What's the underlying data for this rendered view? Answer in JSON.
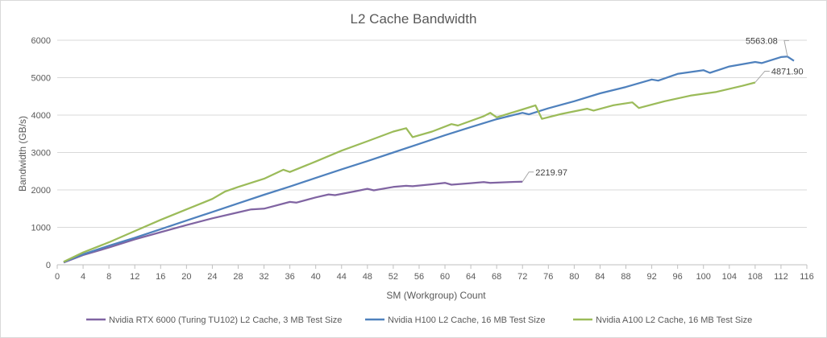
{
  "chart_data": {
    "type": "line",
    "title": "L2 Cache Bandwidth",
    "xlabel": "SM (Workgroup) Count",
    "ylabel": "Bandwidth (GB/s)",
    "xlim": [
      0,
      116
    ],
    "ylim": [
      0,
      6000
    ],
    "x_ticks": [
      0,
      4,
      8,
      12,
      16,
      20,
      24,
      28,
      32,
      36,
      40,
      44,
      48,
      52,
      56,
      60,
      64,
      68,
      72,
      76,
      80,
      84,
      88,
      92,
      96,
      100,
      104,
      108,
      112,
      116
    ],
    "y_ticks": [
      0,
      1000,
      2000,
      3000,
      4000,
      5000,
      6000
    ],
    "grid": "horizontal",
    "legend_position": "bottom",
    "series": [
      {
        "name": "Nvidia RTX 6000 (Turing TU102) L2 Cache, 3 MB Test Size",
        "color": "#8064a2",
        "end_label": "2219.97",
        "points": [
          [
            1,
            60
          ],
          [
            4,
            260
          ],
          [
            8,
            460
          ],
          [
            12,
            680
          ],
          [
            16,
            870
          ],
          [
            20,
            1060
          ],
          [
            24,
            1240
          ],
          [
            28,
            1400
          ],
          [
            30,
            1480
          ],
          [
            32,
            1500
          ],
          [
            36,
            1680
          ],
          [
            37,
            1660
          ],
          [
            40,
            1800
          ],
          [
            42,
            1880
          ],
          [
            43,
            1860
          ],
          [
            46,
            1960
          ],
          [
            48,
            2030
          ],
          [
            49,
            1990
          ],
          [
            52,
            2080
          ],
          [
            54,
            2110
          ],
          [
            55,
            2100
          ],
          [
            58,
            2150
          ],
          [
            60,
            2190
          ],
          [
            61,
            2140
          ],
          [
            64,
            2180
          ],
          [
            66,
            2210
          ],
          [
            67,
            2190
          ],
          [
            70,
            2210
          ],
          [
            72,
            2219.97
          ]
        ]
      },
      {
        "name": "Nvidia H100 L2 Cache, 16 MB Test Size",
        "color": "#4f81bd",
        "end_label": "5563.08",
        "points": [
          [
            1,
            70
          ],
          [
            4,
            280
          ],
          [
            8,
            510
          ],
          [
            12,
            720
          ],
          [
            16,
            950
          ],
          [
            20,
            1180
          ],
          [
            24,
            1410
          ],
          [
            28,
            1640
          ],
          [
            32,
            1870
          ],
          [
            36,
            2090
          ],
          [
            40,
            2320
          ],
          [
            44,
            2550
          ],
          [
            48,
            2770
          ],
          [
            52,
            3000
          ],
          [
            56,
            3230
          ],
          [
            60,
            3460
          ],
          [
            64,
            3680
          ],
          [
            68,
            3890
          ],
          [
            72,
            4060
          ],
          [
            73,
            4020
          ],
          [
            76,
            4180
          ],
          [
            80,
            4370
          ],
          [
            84,
            4580
          ],
          [
            88,
            4750
          ],
          [
            92,
            4950
          ],
          [
            93,
            4920
          ],
          [
            96,
            5100
          ],
          [
            100,
            5200
          ],
          [
            101,
            5130
          ],
          [
            104,
            5300
          ],
          [
            108,
            5420
          ],
          [
            109,
            5390
          ],
          [
            112,
            5550
          ],
          [
            113,
            5563.08
          ],
          [
            114,
            5450
          ]
        ]
      },
      {
        "name": "Nvidia A100 L2 Cache, 16 MB Test Size",
        "color": "#9bbb59",
        "end_label": "4871.90",
        "points": [
          [
            1,
            80
          ],
          [
            4,
            330
          ],
          [
            8,
            600
          ],
          [
            12,
            900
          ],
          [
            16,
            1200
          ],
          [
            20,
            1480
          ],
          [
            24,
            1760
          ],
          [
            26,
            1960
          ],
          [
            28,
            2080
          ],
          [
            32,
            2300
          ],
          [
            35,
            2540
          ],
          [
            36,
            2480
          ],
          [
            40,
            2760
          ],
          [
            44,
            3050
          ],
          [
            48,
            3300
          ],
          [
            52,
            3560
          ],
          [
            54,
            3650
          ],
          [
            55,
            3410
          ],
          [
            58,
            3560
          ],
          [
            61,
            3760
          ],
          [
            62,
            3720
          ],
          [
            66,
            3970
          ],
          [
            67,
            4060
          ],
          [
            68,
            3940
          ],
          [
            72,
            4150
          ],
          [
            74,
            4260
          ],
          [
            75,
            3900
          ],
          [
            78,
            4030
          ],
          [
            82,
            4170
          ],
          [
            83,
            4120
          ],
          [
            86,
            4260
          ],
          [
            89,
            4340
          ],
          [
            90,
            4190
          ],
          [
            94,
            4370
          ],
          [
            98,
            4520
          ],
          [
            102,
            4620
          ],
          [
            106,
            4780
          ],
          [
            108,
            4871.9
          ]
        ]
      }
    ]
  }
}
